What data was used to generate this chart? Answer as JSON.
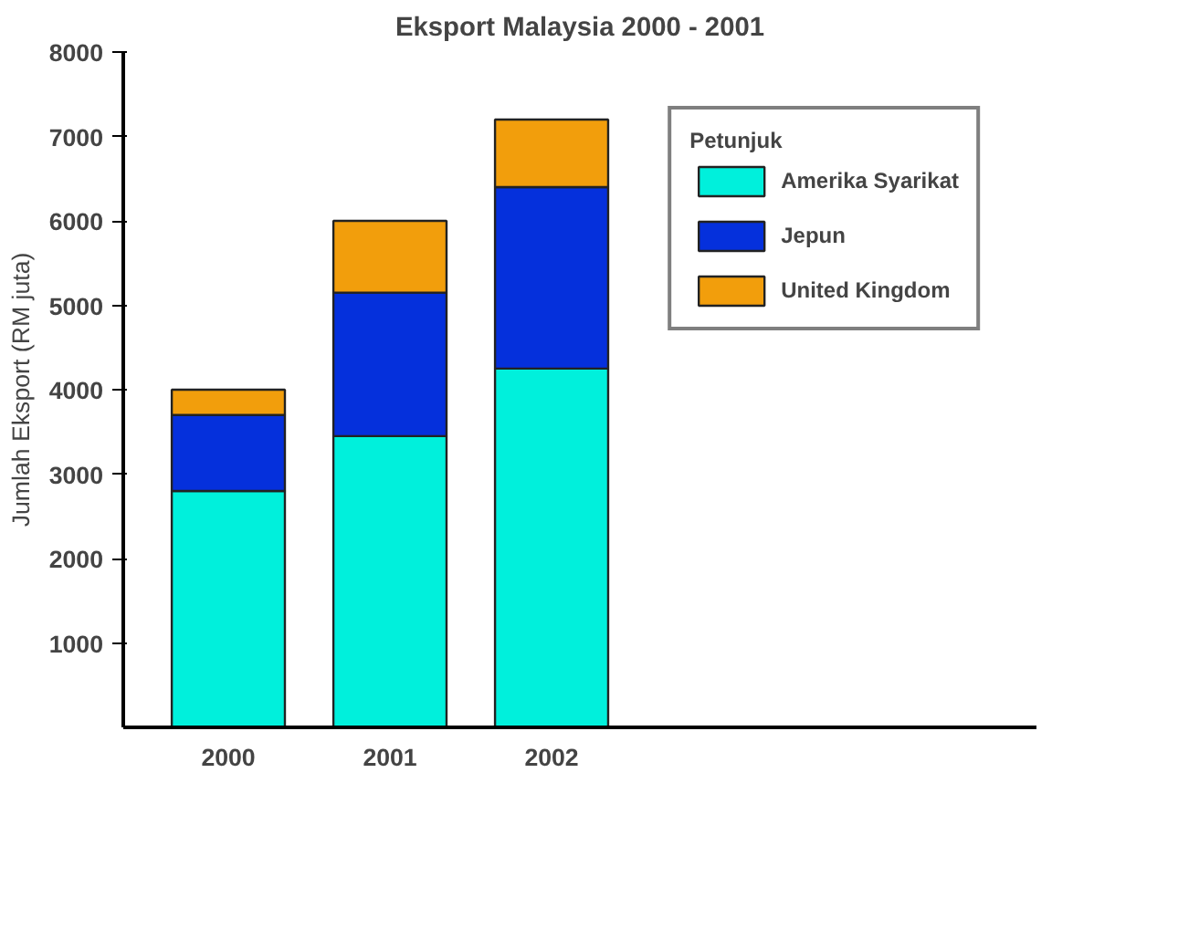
{
  "chart_data": {
    "type": "bar",
    "stacked": true,
    "title": "Eksport Malaysia 2000 - 2001",
    "ylabel": "Jumlah Eksport (RM juta)",
    "legend_title": "Petunjuk",
    "categories": [
      "2000",
      "2001",
      "2002"
    ],
    "series": [
      {
        "name": "Amerika Syarikat",
        "color": "#00f0dc",
        "values": [
          2800,
          3450,
          4250
        ]
      },
      {
        "name": "Jepun",
        "color": "#0530dc",
        "values": [
          900,
          1700,
          2150
        ]
      },
      {
        "name": "United Kingdom",
        "color": "#f29e0c",
        "values": [
          300,
          850,
          800
        ]
      }
    ],
    "ylim": [
      0,
      8000
    ],
    "yticks": [
      1000,
      2000,
      3000,
      4000,
      5000,
      6000,
      7000,
      8000
    ],
    "grid": false,
    "legend": "right"
  }
}
